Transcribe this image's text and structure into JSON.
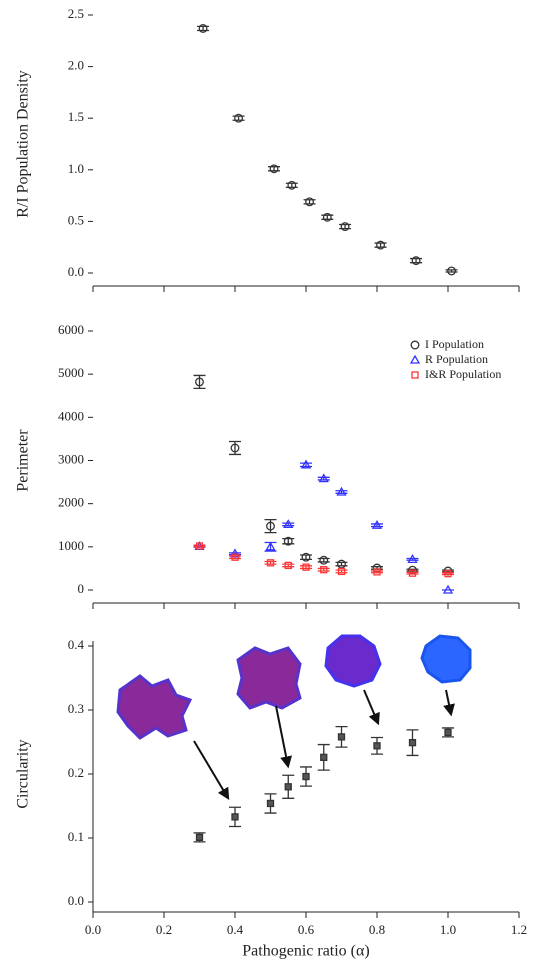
{
  "chart_data": [
    {
      "type": "scatter",
      "ylabel": "R/I Population Density",
      "xlim": [
        0,
        1.2
      ],
      "ylim": [
        0,
        2.5
      ],
      "yticks": [
        {
          "value": 0,
          "label": "0.0"
        },
        0.5,
        {
          "value": 1,
          "label": "1.0"
        },
        1.5,
        {
          "value": 2,
          "label": "2.0"
        },
        2.5
      ],
      "x": [
        0.31,
        0.41,
        0.51,
        0.56,
        0.61,
        0.66,
        0.71,
        0.81,
        0.91,
        1.01
      ],
      "values": [
        2.37,
        1.5,
        1.01,
        0.85,
        0.69,
        0.54,
        0.45,
        0.27,
        0.12,
        0.02
      ],
      "errors": [
        0.02,
        0.02,
        0.02,
        0.02,
        0.02,
        0.02,
        0.02,
        0.02,
        0.02,
        0.01
      ],
      "color": "#333333",
      "marker": "circle"
    },
    {
      "type": "scatter",
      "ylabel": "Perimeter",
      "xlim": [
        0,
        1.2
      ],
      "ylim": [
        0,
        6000
      ],
      "yticks": [
        0,
        1000,
        2000,
        3000,
        4000,
        5000,
        6000
      ],
      "legend": "top-right",
      "x": [
        0.3,
        0.4,
        0.5,
        0.55,
        0.6,
        0.65,
        0.7,
        0.8,
        0.9,
        1.0
      ],
      "series": [
        {
          "name": "I Population",
          "color": "#333333",
          "marker": "circle",
          "values": [
            4820,
            3290,
            1480,
            1130,
            760,
            690,
            600,
            510,
            460,
            440
          ],
          "errors": [
            150,
            150,
            150,
            60,
            50,
            40,
            40,
            30,
            20,
            20
          ]
        },
        {
          "name": "R Population",
          "color": "#3333ff",
          "marker": "triangle",
          "values": [
            1010,
            840,
            1000,
            1520,
            2900,
            2580,
            2270,
            1500,
            710,
            0
          ],
          "errors": [
            20,
            20,
            100,
            30,
            40,
            30,
            30,
            30,
            20,
            0
          ]
        },
        {
          "name": "I&R Population",
          "color": "#ff3333",
          "marker": "square",
          "values": [
            1020,
            760,
            630,
            570,
            530,
            470,
            430,
            420,
            390,
            380
          ],
          "errors": [
            20,
            30,
            30,
            30,
            30,
            30,
            30,
            20,
            20,
            20
          ]
        }
      ]
    },
    {
      "type": "scatter",
      "ylabel": "Circularity",
      "xlabel": "Pathogenic ratio (α)",
      "xlim": [
        0,
        1.2
      ],
      "ylim": [
        0,
        0.4
      ],
      "xticks": [
        {
          "value": 0,
          "label": "0.0"
        },
        0.2,
        0.4,
        0.6,
        0.8,
        {
          "value": 1,
          "label": "1.0"
        },
        1.2
      ],
      "yticks": [
        {
          "value": 0,
          "label": "0.0"
        },
        0.1,
        0.2,
        0.3,
        0.4
      ],
      "x": [
        0.3,
        0.4,
        0.5,
        0.55,
        0.6,
        0.65,
        0.7,
        0.8,
        0.9,
        1.0
      ],
      "values": [
        0.101,
        0.133,
        0.154,
        0.18,
        0.196,
        0.226,
        0.258,
        0.244,
        0.249,
        0.265
      ],
      "errors": [
        0.007,
        0.015,
        0.015,
        0.018,
        0.015,
        0.02,
        0.016,
        0.013,
        0.02,
        0.007
      ],
      "color": "#333333",
      "marker": "square"
    }
  ]
}
